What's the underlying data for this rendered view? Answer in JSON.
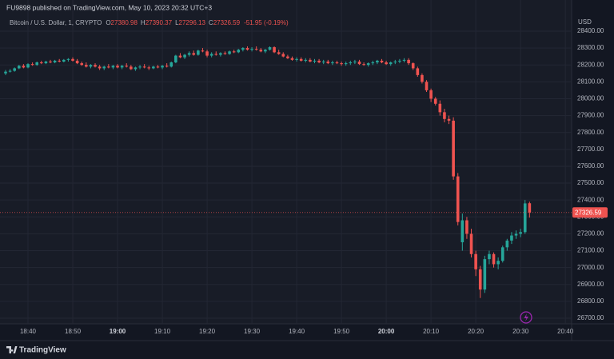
{
  "header": {
    "published": "FU9898 published on TradingView.com, May 10, 2023 20:32 UTC+3",
    "brand": "TradingView"
  },
  "chart_data": {
    "type": "candlestick",
    "symbol": "Bitcoin / U.S. Dollar, 1, CRYPTO",
    "ohlc_prefixes": [
      "O",
      "H",
      "L",
      "C"
    ],
    "change": "-51.95 (-0.19%)",
    "currency": "USD",
    "up_color": "#26a69a",
    "down_color": "#ef5350",
    "grid": true,
    "x": [
      1115,
      1116,
      1117,
      1118,
      1119,
      1120,
      1121,
      1122,
      1123,
      1124,
      1125,
      1126,
      1127,
      1128,
      1129,
      1130,
      1131,
      1132,
      1133,
      1134,
      1135,
      1136,
      1137,
      1138,
      1139,
      1140,
      1141,
      1142,
      1143,
      1144,
      1145,
      1146,
      1147,
      1148,
      1149,
      1150,
      1151,
      1152,
      1153,
      1154,
      1155,
      1156,
      1157,
      1158,
      1159,
      1160,
      1161,
      1162,
      1163,
      1164,
      1165,
      1166,
      1167,
      1168,
      1169,
      1170,
      1171,
      1172,
      1173,
      1174,
      1175,
      1176,
      1177,
      1178,
      1179,
      1180,
      1181,
      1182,
      1183,
      1184,
      1185,
      1186,
      1187,
      1188,
      1189,
      1190,
      1191,
      1192,
      1193,
      1194,
      1195,
      1196,
      1197,
      1198,
      1199,
      1200,
      1201,
      1202,
      1203,
      1204,
      1205,
      1206,
      1207,
      1208,
      1209,
      1210,
      1211,
      1212,
      1213,
      1214,
      1215,
      1216,
      1217,
      1218,
      1219,
      1220,
      1221,
      1222,
      1223,
      1224,
      1225,
      1226,
      1227,
      1228,
      1229,
      1230,
      1231,
      1232
    ],
    "values": [
      [
        28150,
        28170,
        28140,
        28160
      ],
      [
        28160,
        28175,
        28155,
        28165
      ],
      [
        28165,
        28185,
        28160,
        28180
      ],
      [
        28180,
        28200,
        28175,
        28195
      ],
      [
        28195,
        28205,
        28180,
        28185
      ],
      [
        28185,
        28210,
        28180,
        28205
      ],
      [
        28205,
        28215,
        28195,
        28200
      ],
      [
        28200,
        28220,
        28195,
        28215
      ],
      [
        28215,
        28225,
        28205,
        28210
      ],
      [
        28210,
        28225,
        28205,
        28220
      ],
      [
        28220,
        28230,
        28210,
        28215
      ],
      [
        28215,
        28230,
        28210,
        28225
      ],
      [
        28225,
        28235,
        28215,
        28220
      ],
      [
        28220,
        28235,
        28215,
        28230
      ],
      [
        28230,
        28240,
        28220,
        28235
      ],
      [
        28235,
        28245,
        28220,
        28225
      ],
      [
        28225,
        28235,
        28205,
        28210
      ],
      [
        28210,
        28220,
        28195,
        28200
      ],
      [
        28200,
        28215,
        28185,
        28190
      ],
      [
        28190,
        28205,
        28180,
        28200
      ],
      [
        28200,
        28210,
        28185,
        28190
      ],
      [
        28190,
        28200,
        28170,
        28180
      ],
      [
        28180,
        28195,
        28170,
        28190
      ],
      [
        28190,
        28205,
        28180,
        28185
      ],
      [
        28185,
        28200,
        28175,
        28195
      ],
      [
        28195,
        28205,
        28180,
        28185
      ],
      [
        28185,
        28200,
        28175,
        28195
      ],
      [
        28195,
        28210,
        28185,
        28190
      ],
      [
        28190,
        28200,
        28170,
        28175
      ],
      [
        28175,
        28190,
        28165,
        28185
      ],
      [
        28185,
        28200,
        28175,
        28190
      ],
      [
        28190,
        28205,
        28180,
        28185
      ],
      [
        28185,
        28195,
        28170,
        28180
      ],
      [
        28180,
        28195,
        28175,
        28190
      ],
      [
        28190,
        28200,
        28180,
        28185
      ],
      [
        28185,
        28200,
        28175,
        28195
      ],
      [
        28195,
        28210,
        28185,
        28190
      ],
      [
        28190,
        28220,
        28185,
        28215
      ],
      [
        28215,
        28260,
        28210,
        28255
      ],
      [
        28255,
        28270,
        28240,
        28245
      ],
      [
        28245,
        28265,
        28235,
        28260
      ],
      [
        28260,
        28280,
        28250,
        28270
      ],
      [
        28270,
        28285,
        28255,
        28260
      ],
      [
        28260,
        28290,
        28255,
        28285
      ],
      [
        28285,
        28300,
        28275,
        28280
      ],
      [
        28280,
        28290,
        28245,
        28255
      ],
      [
        28255,
        28275,
        28245,
        28265
      ],
      [
        28265,
        28280,
        28255,
        28260
      ],
      [
        28260,
        28275,
        28250,
        28270
      ],
      [
        28270,
        28280,
        28260,
        28265
      ],
      [
        28265,
        28285,
        28260,
        28280
      ],
      [
        28280,
        28290,
        28270,
        28275
      ],
      [
        28275,
        28295,
        28270,
        28290
      ],
      [
        28290,
        28305,
        28280,
        28300
      ],
      [
        28300,
        28310,
        28285,
        28290
      ],
      [
        28290,
        28305,
        28280,
        28295
      ],
      [
        28295,
        28310,
        28285,
        28290
      ],
      [
        28290,
        28300,
        28275,
        28280
      ],
      [
        28280,
        28295,
        28270,
        28290
      ],
      [
        28290,
        28310,
        28285,
        28305
      ],
      [
        28305,
        28310,
        28270,
        28275
      ],
      [
        28275,
        28290,
        28260,
        28265
      ],
      [
        28265,
        28275,
        28245,
        28250
      ],
      [
        28250,
        28260,
        28235,
        28240
      ],
      [
        28240,
        28250,
        28225,
        28230
      ],
      [
        28230,
        28245,
        28220,
        28235
      ],
      [
        28235,
        28245,
        28220,
        28225
      ],
      [
        28225,
        28240,
        28215,
        28230
      ],
      [
        28230,
        28240,
        28215,
        28220
      ],
      [
        28220,
        28235,
        28210,
        28225
      ],
      [
        28225,
        28235,
        28210,
        28215
      ],
      [
        28215,
        28230,
        28205,
        28220
      ],
      [
        28220,
        28230,
        28205,
        28210
      ],
      [
        28210,
        28225,
        28200,
        28215
      ],
      [
        28215,
        28225,
        28205,
        28210
      ],
      [
        28210,
        28220,
        28195,
        28205
      ],
      [
        28205,
        28220,
        28195,
        28210
      ],
      [
        28210,
        28225,
        28200,
        28215
      ],
      [
        28215,
        28230,
        28205,
        28220
      ],
      [
        28220,
        28230,
        28200,
        28205
      ],
      [
        28205,
        28215,
        28195,
        28200
      ],
      [
        28200,
        28215,
        28190,
        28210
      ],
      [
        28210,
        28225,
        28200,
        28215
      ],
      [
        28215,
        28230,
        28205,
        28225
      ],
      [
        28225,
        28235,
        28210,
        28215
      ],
      [
        28215,
        28225,
        28200,
        28205
      ],
      [
        28205,
        28220,
        28195,
        28215
      ],
      [
        28215,
        28230,
        28205,
        28220
      ],
      [
        28220,
        28235,
        28210,
        28225
      ],
      [
        28225,
        28240,
        28215,
        28230
      ],
      [
        28230,
        28240,
        28200,
        28210
      ],
      [
        28210,
        28215,
        28170,
        28180
      ],
      [
        28180,
        28190,
        28130,
        28140
      ],
      [
        28140,
        28150,
        28090,
        28100
      ],
      [
        28100,
        28110,
        28040,
        28050
      ],
      [
        28050,
        28060,
        27980,
        28000
      ],
      [
        28000,
        28010,
        27960,
        27970
      ],
      [
        27970,
        27990,
        27900,
        27920
      ],
      [
        27920,
        27940,
        27860,
        27880
      ],
      [
        27880,
        27900,
        27850,
        27870
      ],
      [
        27870,
        27890,
        27520,
        27540
      ],
      [
        27540,
        27560,
        27250,
        27270
      ],
      [
        27150,
        27320,
        27100,
        27280
      ],
      [
        27280,
        27300,
        27170,
        27200
      ],
      [
        27200,
        27230,
        27060,
        27080
      ],
      [
        27080,
        27100,
        26950,
        26990
      ],
      [
        26990,
        27010,
        26820,
        26870
      ],
      [
        26870,
        27070,
        26850,
        27050
      ],
      [
        27050,
        27100,
        27020,
        27080
      ],
      [
        27080,
        27090,
        27000,
        27020
      ],
      [
        27020,
        27060,
        26990,
        27040
      ],
      [
        27040,
        27130,
        27030,
        27120
      ],
      [
        27120,
        27170,
        27100,
        27160
      ],
      [
        27160,
        27210,
        27140,
        27190
      ],
      [
        27190,
        27220,
        27170,
        27200
      ],
      [
        27200,
        27230,
        27180,
        27210
      ],
      [
        27210,
        27400,
        27200,
        27380
      ],
      [
        27380.98,
        27390.37,
        27296.13,
        27326.59
      ]
    ],
    "xlim": [
      1113.75,
      1241.4
    ],
    "xticks": [
      {
        "value": 1120,
        "label": "18:40"
      },
      {
        "value": 1130,
        "label": "18:50"
      },
      {
        "value": 1140,
        "label": "19:00",
        "bold": true
      },
      {
        "value": 1150,
        "label": "19:10"
      },
      {
        "value": 1160,
        "label": "19:20"
      },
      {
        "value": 1170,
        "label": "19:30"
      },
      {
        "value": 1180,
        "label": "19:40"
      },
      {
        "value": 1190,
        "label": "19:50"
      },
      {
        "value": 1200,
        "label": "20:00",
        "bold": true
      },
      {
        "value": 1210,
        "label": "20:10"
      },
      {
        "value": 1220,
        "label": "20:20"
      },
      {
        "value": 1230,
        "label": "20:30"
      },
      {
        "value": 1240,
        "label": "20:40"
      }
    ],
    "ylim": [
      26650,
      28450
    ],
    "yticks": [
      {
        "value": 26700,
        "label": "26700.00"
      },
      {
        "value": 26800,
        "label": "26800.00"
      },
      {
        "value": 26900,
        "label": "26900.00"
      },
      {
        "value": 27000,
        "label": "27000.00"
      },
      {
        "value": 27100,
        "label": "27100.00"
      },
      {
        "value": 27200,
        "label": "27200.00"
      },
      {
        "value": 27300,
        "label": "27300.00"
      },
      {
        "value": 27400,
        "label": "27400.00"
      },
      {
        "value": 27500,
        "label": "27500.00"
      },
      {
        "value": 27600,
        "label": "27600.00"
      },
      {
        "value": 27700,
        "label": "27700.00"
      },
      {
        "value": 27800,
        "label": "27800.00"
      },
      {
        "value": 27900,
        "label": "27900.00"
      },
      {
        "value": 28000,
        "label": "28000.00"
      },
      {
        "value": 28100,
        "label": "28100.00"
      },
      {
        "value": 28200,
        "label": "28200.00"
      },
      {
        "value": 28300,
        "label": "28300.00"
      },
      {
        "value": 28400,
        "label": "28400.00"
      }
    ]
  }
}
